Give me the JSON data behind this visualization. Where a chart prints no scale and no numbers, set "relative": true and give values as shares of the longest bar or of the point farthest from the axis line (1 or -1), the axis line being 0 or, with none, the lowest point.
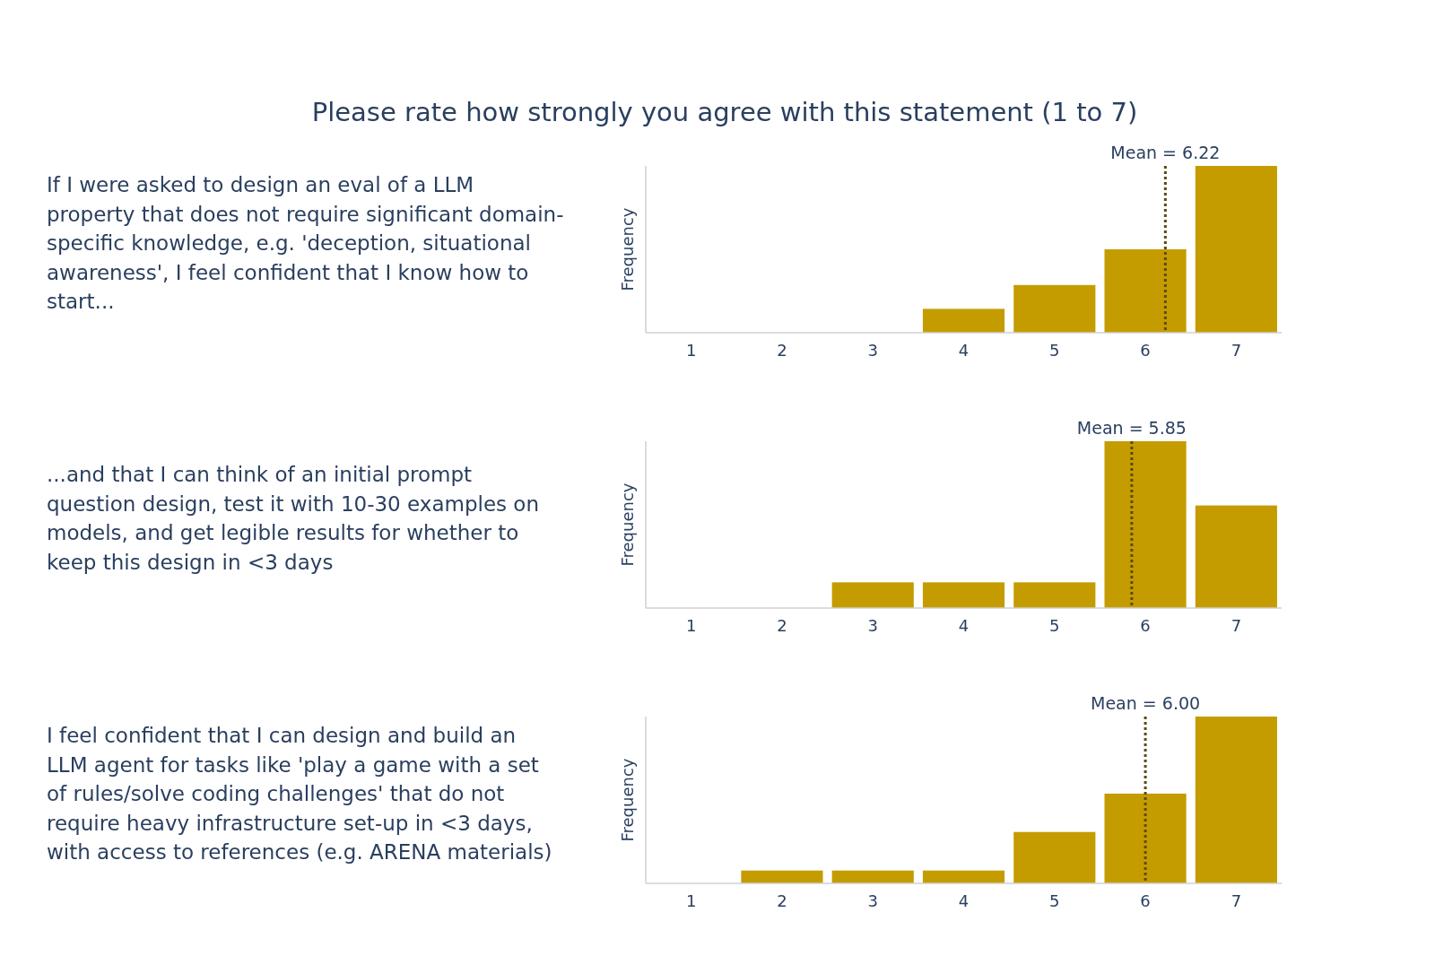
{
  "chart_data": [
    {
      "type": "bar",
      "title": "Please rate how strongly you agree with this statement (1 to 7)",
      "annotations": [
        "If I were asked to design an eval of a LLM\nproperty that does not require significant domain-\nspecific knowledge, e.g. 'deception, situational\nawareness', I feel confident that I know how to\nstart..."
      ],
      "ylabel": "Frequency",
      "x": [
        1,
        2,
        3,
        4,
        5,
        6,
        7
      ],
      "xlim": [
        0.5,
        7.5
      ],
      "xticks": [
        1,
        2,
        3,
        4,
        5,
        6,
        7
      ],
      "relative": true,
      "series": [
        {
          "color": "#c49c00",
          "values": [
            0,
            0,
            0,
            0.143,
            0.286,
            0.5,
            1
          ]
        }
      ],
      "ref_lines": [
        {
          "axis": "x",
          "value": 6.22,
          "label": "Mean = 6.22",
          "color": "#5c4a10",
          "line_style": "dotted"
        }
      ]
    },
    {
      "type": "bar",
      "annotations": [
        "...and that I can think of an initial prompt\nquestion design, test it with 10-30 examples on\nmodels, and get legible results for whether to\nkeep this design in <3 days"
      ],
      "ylabel": "Frequency",
      "x": [
        1,
        2,
        3,
        4,
        5,
        6,
        7
      ],
      "xlim": [
        0.5,
        7.5
      ],
      "xticks": [
        1,
        2,
        3,
        4,
        5,
        6,
        7
      ],
      "relative": true,
      "series": [
        {
          "color": "#c49c00",
          "values": [
            0,
            0,
            0.154,
            0.154,
            0.154,
            1,
            0.615
          ]
        }
      ],
      "ref_lines": [
        {
          "axis": "x",
          "value": 5.85,
          "label": "Mean = 5.85",
          "color": "#5c4a10",
          "line_style": "dotted"
        }
      ]
    },
    {
      "type": "bar",
      "annotations": [
        "I feel confident that I can design and build an\nLLM agent for tasks like 'play a game with a set\nof rules/solve coding challenges' that do not\nrequire heavy infrastructure set-up in <3 days,\nwith access to references (e.g. ARENA materials)"
      ],
      "ylabel": "Frequency",
      "x": [
        1,
        2,
        3,
        4,
        5,
        6,
        7
      ],
      "xlim": [
        0.5,
        7.5
      ],
      "xticks": [
        1,
        2,
        3,
        4,
        5,
        6,
        7
      ],
      "relative": true,
      "series": [
        {
          "color": "#c49c00",
          "values": [
            0,
            0.077,
            0.077,
            0.077,
            0.308,
            0.538,
            1
          ]
        }
      ],
      "ref_lines": [
        {
          "axis": "x",
          "value": 6.0,
          "label": "Mean = 6.00",
          "color": "#5c4a10",
          "line_style": "dotted"
        }
      ]
    }
  ]
}
